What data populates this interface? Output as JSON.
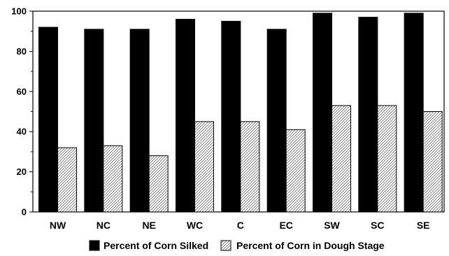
{
  "chart_data": {
    "type": "bar",
    "title": "",
    "xlabel": "",
    "ylabel": "",
    "ylim": [
      0,
      100
    ],
    "yticks": [
      0,
      20,
      40,
      60,
      80,
      100
    ],
    "grid": false,
    "legend_position": "bottom",
    "categories": [
      "NW",
      "NC",
      "NE",
      "WC",
      "C",
      "EC",
      "SW",
      "SC",
      "SE"
    ],
    "series": [
      {
        "name": "Percent of Corn Silked",
        "values": [
          92,
          91,
          91,
          96,
          95,
          91,
          99,
          97,
          99
        ],
        "fill": "solid",
        "color": "#000000"
      },
      {
        "name": "Percent of Corn in Dough Stage",
        "values": [
          32,
          33,
          28,
          45,
          45,
          41,
          53,
          53,
          50
        ],
        "fill": "hatched",
        "color": "#9a9a9a"
      }
    ]
  }
}
